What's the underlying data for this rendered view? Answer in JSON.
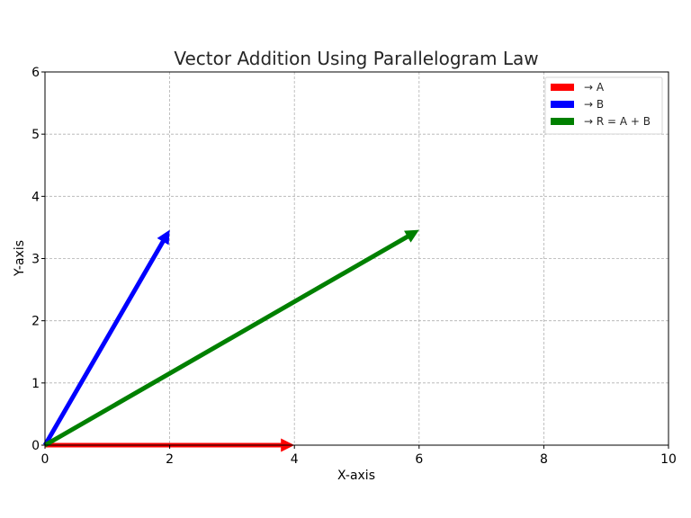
{
  "chart_data": {
    "type": "line",
    "title": "Vector Addition Using Parallelogram Law",
    "xlabel": "X-axis",
    "ylabel": "Y-axis",
    "xlim": [
      0,
      10
    ],
    "ylim": [
      0,
      6
    ],
    "xticks": [
      0,
      2,
      4,
      6,
      8,
      10
    ],
    "yticks": [
      0,
      1,
      2,
      3,
      4,
      5,
      6
    ],
    "grid": true,
    "legend_position": "top-right",
    "series": [
      {
        "name": "→ A",
        "color": "#ff0000",
        "start": [
          0,
          0
        ],
        "end": [
          4,
          0
        ]
      },
      {
        "name": "→ B",
        "color": "#0000ff",
        "start": [
          0,
          0
        ],
        "end": [
          2,
          3.46
        ]
      },
      {
        "name": "→ R = A + B",
        "color": "#008000",
        "start": [
          0,
          0
        ],
        "end": [
          6,
          3.46
        ]
      }
    ]
  }
}
